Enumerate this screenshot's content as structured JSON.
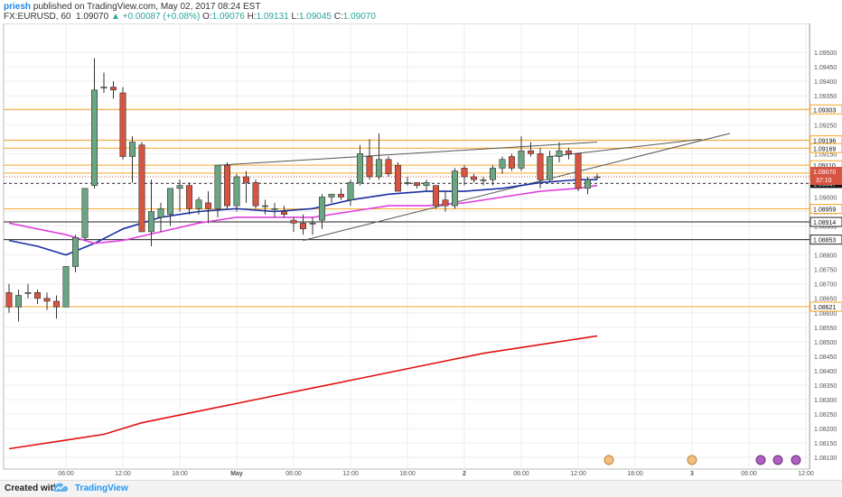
{
  "header": {
    "author": "priesh",
    "published": "published on TradingView.com, May 02, 2017 08:24 EST",
    "symbol": "FX:EURUSD, 60",
    "last": "1.09070",
    "change_arrow": "▲",
    "change": "+0.00087 (+0.08%)",
    "o_label": "O:",
    "o": "1.09076",
    "h_label": "H:",
    "h": "1.09131",
    "l_label": "L:",
    "l": "1.09045",
    "c_label": "C:",
    "c": "1.09070"
  },
  "footer": {
    "created_with": "Created with",
    "brand": "TradingView",
    "logo_icon": "tradingview-cloud-icon"
  },
  "colors": {
    "up": "#6ba583",
    "down": "#d75442",
    "ma_fast": "#1a2fa3",
    "ma_mid": "#e040e0",
    "ma_slow": "#e01010",
    "level": "#f5a623",
    "support": "#222222",
    "trend": "#555555"
  },
  "chart_data": {
    "type": "candlestick",
    "ylim": [
      1.0806,
      1.096
    ],
    "y_ticks": [
      "1.09500",
      "1.09450",
      "1.09400",
      "1.09350",
      "1.09300",
      "1.09250",
      "1.09200",
      "1.09150",
      "1.09100",
      "1.09050",
      "1.09000",
      "1.08950",
      "1.08900",
      "1.08850",
      "1.08800",
      "1.08750",
      "1.08700",
      "1.08650",
      "1.08600",
      "1.08550",
      "1.08500",
      "1.08450",
      "1.08400",
      "1.08350",
      "1.08300",
      "1.08250",
      "1.08200",
      "1.08150",
      "1.08100"
    ],
    "x_ticks": [
      {
        "label": "06:00",
        "bar": 6
      },
      {
        "label": "12:00",
        "bar": 12
      },
      {
        "label": "18:00",
        "bar": 18
      },
      {
        "label": "May",
        "bar": 24
      },
      {
        "label": "06:00",
        "bar": 30
      },
      {
        "label": "12:00",
        "bar": 36
      },
      {
        "label": "18:00",
        "bar": 42
      },
      {
        "label": "2",
        "bar": 48
      },
      {
        "label": "06:00",
        "bar": 54
      },
      {
        "label": "12:00",
        "bar": 60
      },
      {
        "label": "18:00",
        "bar": 66
      },
      {
        "label": "3",
        "bar": 72
      },
      {
        "label": "06:00",
        "bar": 78
      },
      {
        "label": "12:00",
        "bar": 84
      }
    ],
    "candles": [
      [
        1.0867,
        1.087,
        1.086,
        1.0862
      ],
      [
        1.0862,
        1.0868,
        1.0857,
        1.0866
      ],
      [
        1.0867,
        1.087,
        1.0865,
        1.0867
      ],
      [
        1.0867,
        1.0868,
        1.0863,
        1.0865
      ],
      [
        1.0865,
        1.0867,
        1.0861,
        1.0864
      ],
      [
        1.0864,
        1.0866,
        1.0858,
        1.0862
      ],
      [
        1.0862,
        1.0876,
        1.0862,
        1.0876
      ],
      [
        1.0876,
        1.0887,
        1.0874,
        1.0886
      ],
      [
        1.0886,
        1.0903,
        1.0885,
        1.0903
      ],
      [
        1.0904,
        1.0948,
        1.0903,
        1.0937
      ],
      [
        1.0938,
        1.0943,
        1.0936,
        1.0938
      ],
      [
        1.0938,
        1.094,
        1.0934,
        1.0937
      ],
      [
        1.0936,
        1.0938,
        1.0913,
        1.0914
      ],
      [
        1.0914,
        1.0921,
        1.0905,
        1.0919
      ],
      [
        1.0918,
        1.0919,
        1.0888,
        1.0888
      ],
      [
        1.0888,
        1.0906,
        1.0883,
        1.0895
      ],
      [
        1.0893,
        1.0898,
        1.0888,
        1.0896
      ],
      [
        1.0894,
        1.0903,
        1.089,
        1.0903
      ],
      [
        1.0903,
        1.0906,
        1.0895,
        1.0904
      ],
      [
        1.0904,
        1.0905,
        1.0894,
        1.0896
      ],
      [
        1.0896,
        1.09,
        1.0894,
        1.0899
      ],
      [
        1.0898,
        1.0902,
        1.0891,
        1.0896
      ],
      [
        1.0896,
        1.0911,
        1.0893,
        1.0911
      ],
      [
        1.0911,
        1.0912,
        1.0896,
        1.0897
      ],
      [
        1.0897,
        1.0908,
        1.0895,
        1.0907
      ],
      [
        1.0907,
        1.0909,
        1.0898,
        1.0905
      ],
      [
        1.0905,
        1.0906,
        1.0896,
        1.0897
      ],
      [
        1.0897,
        1.0899,
        1.0894,
        1.0897
      ],
      [
        1.0896,
        1.0898,
        1.0893,
        1.0896
      ],
      [
        1.0895,
        1.0897,
        1.0893,
        1.0894
      ],
      [
        1.0892,
        1.0893,
        1.0888,
        1.0891
      ],
      [
        1.0891,
        1.0894,
        1.0887,
        1.0889
      ],
      [
        1.0891,
        1.0893,
        1.0887,
        1.0891
      ],
      [
        1.0892,
        1.0901,
        1.0889,
        1.09
      ],
      [
        1.09,
        1.0901,
        1.0898,
        1.0901
      ],
      [
        1.0901,
        1.0903,
        1.0899,
        1.09
      ],
      [
        1.0899,
        1.0906,
        1.0897,
        1.0905
      ],
      [
        1.0905,
        1.0918,
        1.0904,
        1.0915
      ],
      [
        1.0914,
        1.092,
        1.0906,
        1.0907
      ],
      [
        1.0907,
        1.0922,
        1.0906,
        1.0913
      ],
      [
        1.0913,
        1.0914,
        1.0907,
        1.0908
      ],
      [
        1.0911,
        1.0912,
        1.0902,
        1.0902
      ],
      [
        1.0905,
        1.0907,
        1.0904,
        1.0905
      ],
      [
        1.0905,
        1.0905,
        1.0903,
        1.0904
      ],
      [
        1.0904,
        1.0906,
        1.0902,
        1.0905
      ],
      [
        1.0904,
        1.0904,
        1.0896,
        1.0897
      ],
      [
        1.0899,
        1.0902,
        1.0895,
        1.0897
      ],
      [
        1.0897,
        1.091,
        1.0896,
        1.0909
      ],
      [
        1.091,
        1.0911,
        1.0904,
        1.0907
      ],
      [
        1.0907,
        1.0908,
        1.0905,
        1.0906
      ],
      [
        1.0906,
        1.0907,
        1.0904,
        1.0906
      ],
      [
        1.0906,
        1.0911,
        1.0904,
        1.091
      ],
      [
        1.091,
        1.0914,
        1.0908,
        1.0913
      ],
      [
        1.0914,
        1.0915,
        1.0909,
        1.091
      ],
      [
        1.091,
        1.0921,
        1.0909,
        1.0916
      ],
      [
        1.0916,
        1.0919,
        1.0914,
        1.0915
      ],
      [
        1.0915,
        1.0917,
        1.0903,
        1.0906
      ],
      [
        1.0906,
        1.0916,
        1.0905,
        1.0914
      ],
      [
        1.0914,
        1.0919,
        1.0912,
        1.0916
      ],
      [
        1.0916,
        1.0917,
        1.0913,
        1.0915
      ],
      [
        1.0915,
        1.0915,
        1.0902,
        1.0903
      ],
      [
        1.0903,
        1.0907,
        1.0901,
        1.0906
      ],
      [
        1.0907,
        1.0908,
        1.0906,
        1.0907
      ]
    ],
    "series": [
      {
        "role": "fast-ma",
        "color": "#1a2fa3",
        "values": [
          [
            0,
            1.0885
          ],
          [
            3,
            1.0883
          ],
          [
            6,
            1.088
          ],
          [
            9,
            1.0884
          ],
          [
            12,
            1.0889
          ],
          [
            16,
            1.0893
          ],
          [
            20,
            1.0895
          ],
          [
            24,
            1.0896
          ],
          [
            28,
            1.0895
          ],
          [
            32,
            1.0896
          ],
          [
            36,
            1.0899
          ],
          [
            40,
            1.0901
          ],
          [
            44,
            1.0902
          ],
          [
            48,
            1.0902
          ],
          [
            52,
            1.0903
          ],
          [
            56,
            1.0905
          ],
          [
            60,
            1.0906
          ],
          [
            62,
            1.0906
          ]
        ]
      },
      {
        "role": "mid-ma",
        "color": "#e040e0",
        "values": [
          [
            0,
            1.0891
          ],
          [
            3,
            1.0889
          ],
          [
            6,
            1.0887
          ],
          [
            9,
            1.0884
          ],
          [
            12,
            1.0885
          ],
          [
            16,
            1.0888
          ],
          [
            20,
            1.0891
          ],
          [
            24,
            1.0893
          ],
          [
            28,
            1.0893
          ],
          [
            32,
            1.0893
          ],
          [
            36,
            1.0895
          ],
          [
            40,
            1.0897
          ],
          [
            44,
            1.0897
          ],
          [
            48,
            1.0898
          ],
          [
            52,
            1.09
          ],
          [
            56,
            1.0902
          ],
          [
            60,
            1.0903
          ],
          [
            62,
            1.0904
          ]
        ]
      },
      {
        "role": "slow-ma",
        "color": "#e01010",
        "values": [
          [
            0,
            1.0813
          ],
          [
            6,
            1.0816
          ],
          [
            10,
            1.0818
          ],
          [
            14,
            1.0822
          ],
          [
            20,
            1.0826
          ],
          [
            26,
            1.083
          ],
          [
            32,
            1.0834
          ],
          [
            38,
            1.0838
          ],
          [
            44,
            1.0842
          ],
          [
            50,
            1.0846
          ],
          [
            56,
            1.0849
          ],
          [
            62,
            1.0852
          ]
        ]
      }
    ],
    "horizontal_levels": [
      {
        "price": 1.09303,
        "label": "1.09303",
        "kind": "resistance"
      },
      {
        "price": 1.09196,
        "label": "1.09196",
        "kind": "resistance"
      },
      {
        "price": 1.09169,
        "label": "1.09169",
        "kind": "resistance"
      },
      {
        "price": 1.0911,
        "label": "1.09110",
        "kind": "resistance"
      },
      {
        "price": 1.09083,
        "label": "1.09083",
        "kind": "resistance"
      },
      {
        "price": 1.08959,
        "label": "1.08959",
        "kind": "resistance"
      },
      {
        "price": 1.08914,
        "label": "1.08914",
        "kind": "support"
      },
      {
        "price": 1.08853,
        "label": "1.08853",
        "kind": "support"
      },
      {
        "price": 1.08621,
        "label": "1.08621",
        "kind": "resistance"
      }
    ],
    "current_price": {
      "price": 1.0907,
      "label": "1.09070",
      "timer": "37:10"
    },
    "prev_close": {
      "price": 1.09047,
      "label": "1.09047"
    },
    "trendlines": [
      {
        "from": [
          22,
          1.0911
        ],
        "to": [
          62,
          1.0919
        ]
      },
      {
        "from": [
          31,
          1.0885
        ],
        "to": [
          76,
          1.0922
        ]
      },
      {
        "from": [
          57,
          1.0914
        ],
        "to": [
          73,
          1.092
        ]
      }
    ]
  }
}
